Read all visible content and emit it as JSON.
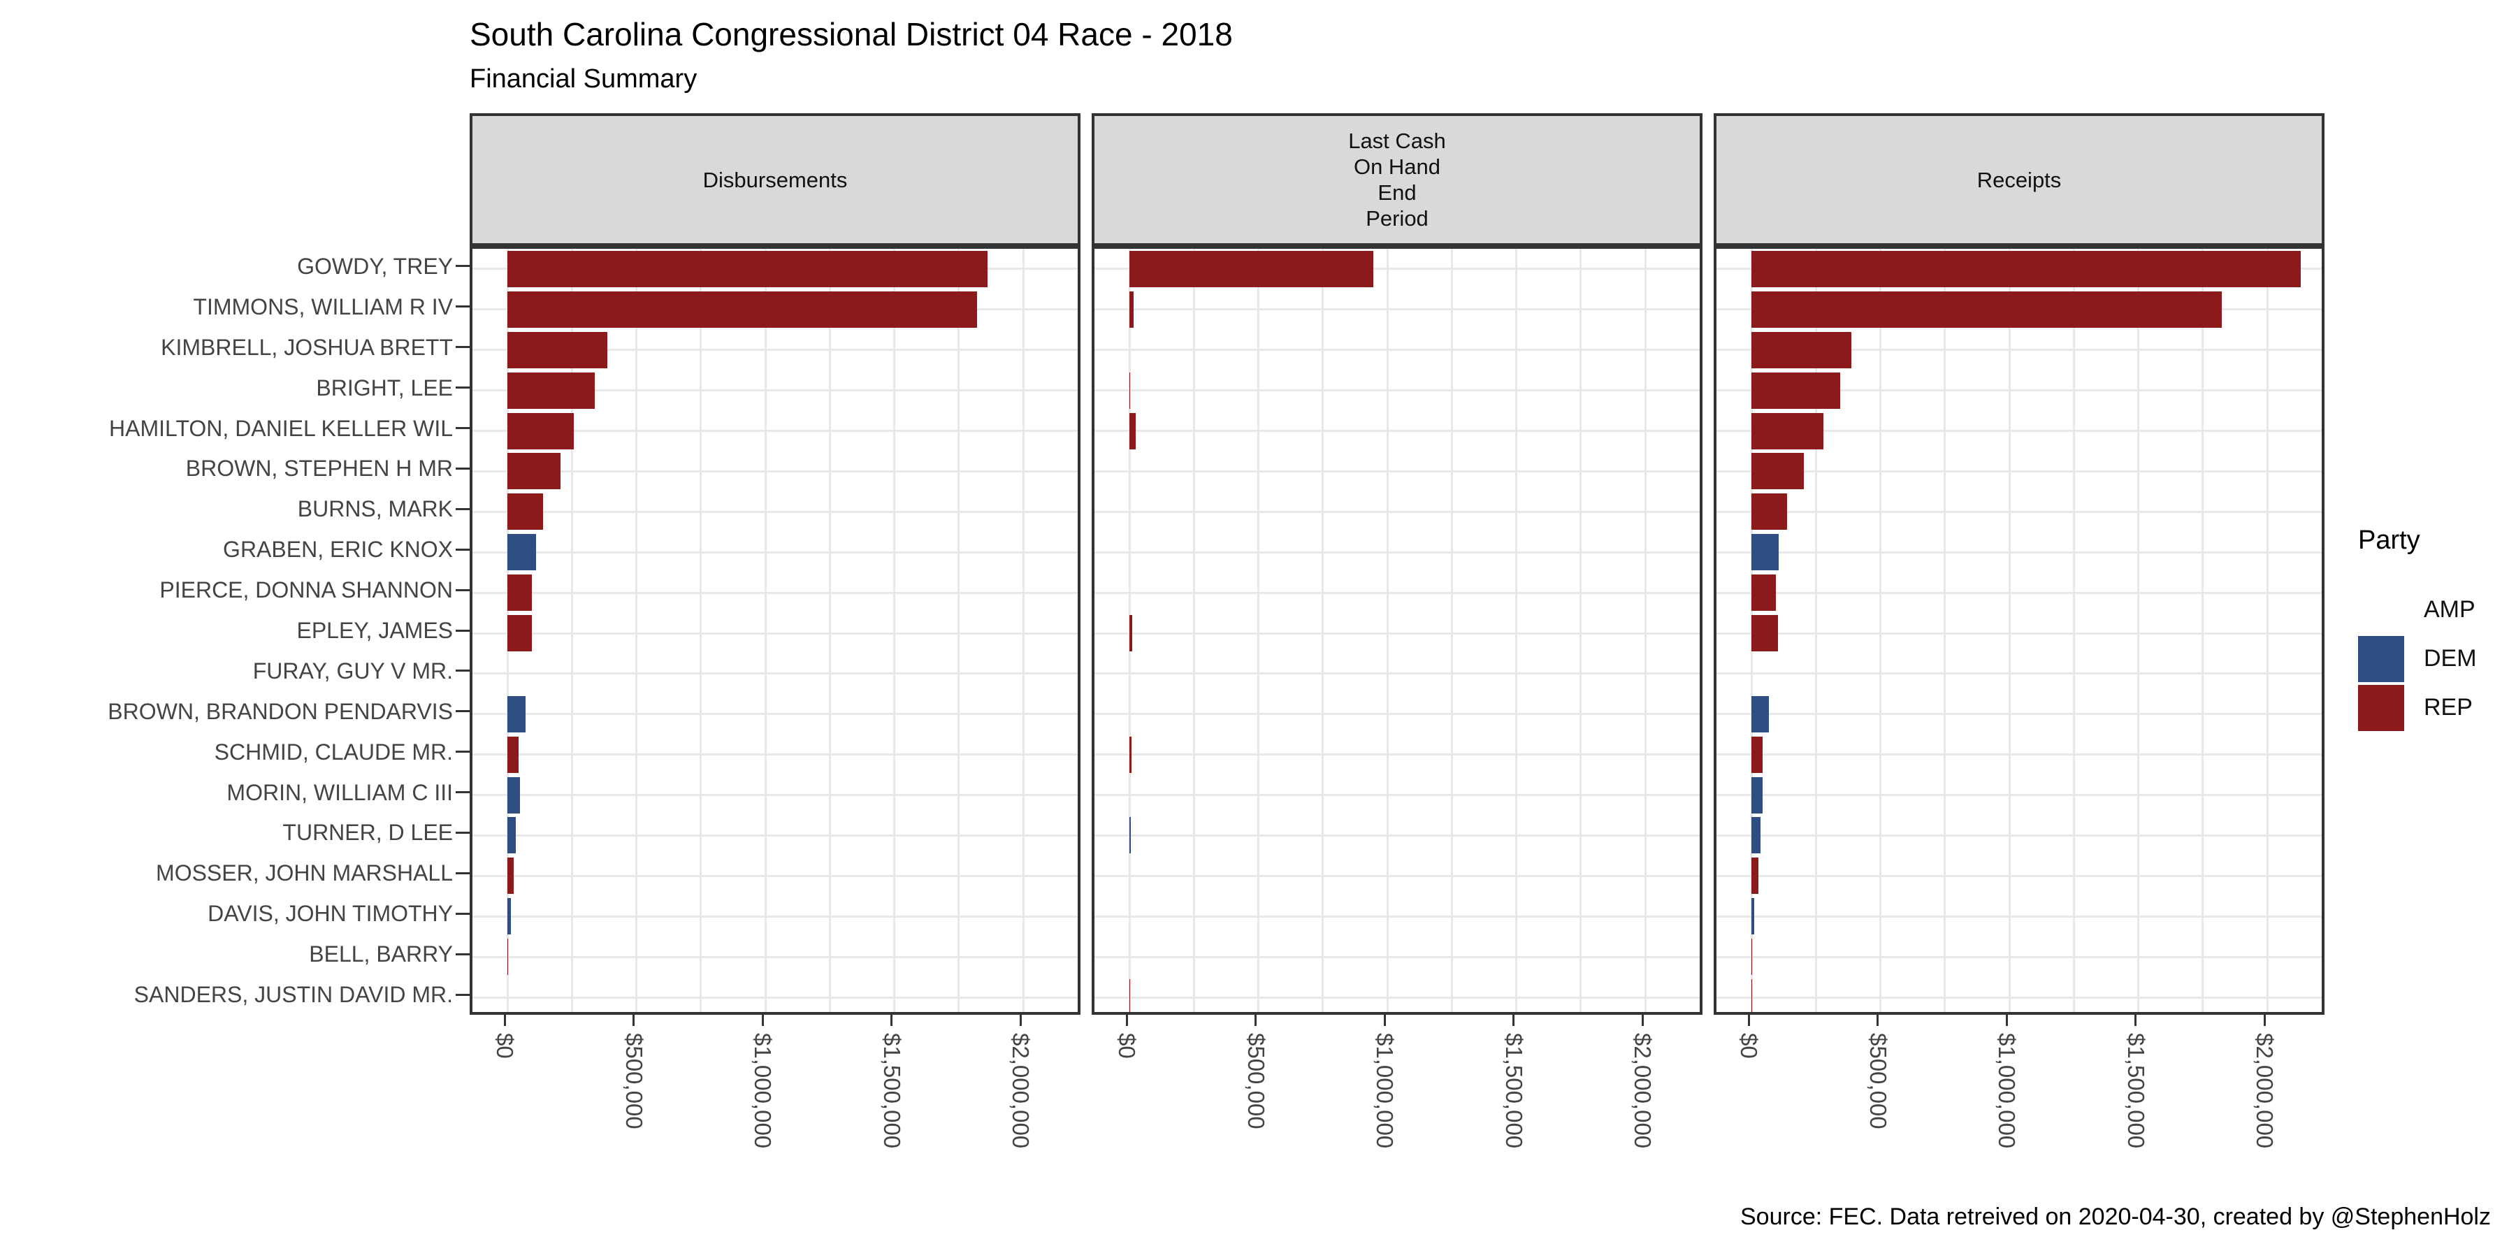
{
  "header": {
    "title": "South Carolina Congressional District 04 Race - 2018",
    "subtitle": "Financial Summary"
  },
  "caption": "Source: FEC. Data retreived on 2020-04-30, created by @StephenHolz",
  "legend": {
    "title": "Party",
    "entries": [
      {
        "label": "AMP",
        "color": "#ffffff"
      },
      {
        "label": "DEM",
        "color": "#2e4d80"
      },
      {
        "label": "REP",
        "color": "#8b1b1b"
      }
    ]
  },
  "chart_data": {
    "type": "bar",
    "orientation": "horizontal",
    "title": "South Carolina Congressional District 04 Race - 2018",
    "subtitle": "Financial Summary",
    "facets": [
      {
        "label": "Disbursements"
      },
      {
        "label": "Last Cash\nOn Hand\nEnd\nPeriod"
      },
      {
        "label": "Receipts"
      }
    ],
    "x_tick_labels": [
      "$0",
      "$500,000",
      "$1,000,000",
      "$1,500,000",
      "$2,000,000"
    ],
    "x_tick_values": [
      0,
      500000,
      1000000,
      1500000,
      2000000
    ],
    "xlim": [
      0,
      2250000
    ],
    "grid_minor_step": 250000,
    "grid": true,
    "legend_position": "right",
    "categories": [
      "GOWDY, TREY",
      "TIMMONS, WILLIAM R IV",
      "KIMBRELL, JOSHUA BRETT",
      "BRIGHT, LEE",
      "HAMILTON, DANIEL KELLER WIL",
      "BROWN, STEPHEN H MR",
      "BURNS, MARK",
      "GRABEN, ERIC KNOX",
      "PIERCE, DONNA SHANNON",
      "EPLEY, JAMES",
      "FURAY, GUY V MR.",
      "BROWN, BRANDON PENDARVIS",
      "SCHMID, CLAUDE MR.",
      "MORIN, WILLIAM C III",
      "TURNER, D LEE",
      "MOSSER, JOHN MARSHALL",
      "DAVIS, JOHN TIMOTHY",
      "BELL, BARRY",
      "SANDERS, JUSTIN DAVID MR."
    ],
    "parties": [
      "REP",
      "REP",
      "REP",
      "REP",
      "REP",
      "REP",
      "REP",
      "DEM",
      "REP",
      "REP",
      "AMP",
      "DEM",
      "REP",
      "DEM",
      "DEM",
      "REP",
      "DEM",
      "REP",
      "REP"
    ],
    "party_colors": {
      "AMP": "#ffffff",
      "DEM": "#2e4d80",
      "REP": "#8b1b1b"
    },
    "series": [
      {
        "name": "Disbursements",
        "values": [
          1862000,
          1820000,
          388000,
          339000,
          258000,
          206000,
          138000,
          110000,
          95000,
          96000,
          0,
          70000,
          44000,
          49000,
          33000,
          24000,
          13000,
          4000,
          0
        ]
      },
      {
        "name": "Last Cash On Hand End Period",
        "values": [
          945000,
          16000,
          0,
          4000,
          24000,
          0,
          0,
          0,
          0,
          12000,
          0,
          0,
          7000,
          0,
          6000,
          0,
          0,
          0,
          3000
        ]
      },
      {
        "name": "Receipts",
        "values": [
          2130000,
          1824000,
          388000,
          343000,
          280000,
          204000,
          138000,
          107000,
          95000,
          103000,
          0,
          68000,
          43000,
          43000,
          34000,
          26000,
          10000,
          4000,
          2000
        ]
      }
    ]
  }
}
